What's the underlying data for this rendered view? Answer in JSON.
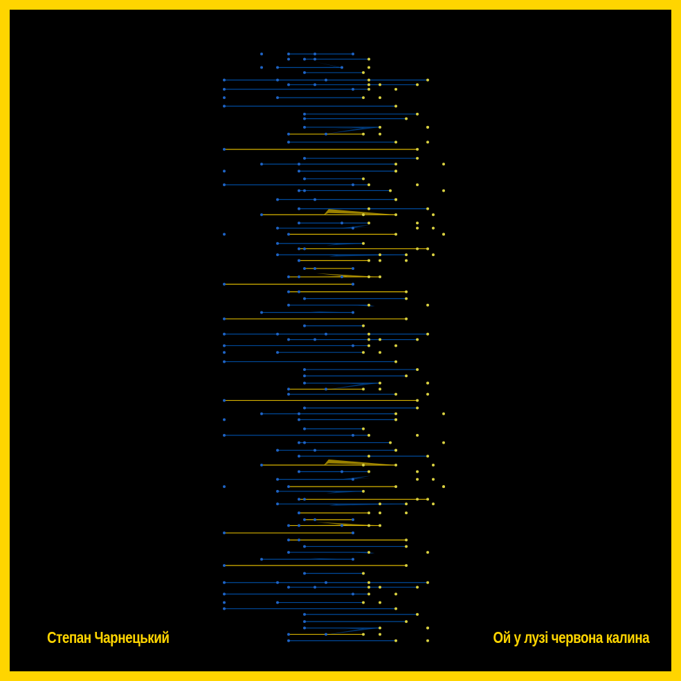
{
  "artwork": {
    "composer": "Степан Чарнецький",
    "song_title": "Ой у лузі червона калина"
  },
  "colors": {
    "frame": "#FFD500",
    "background": "#000000",
    "blue": "#0057B7",
    "yellow": "#FFD500",
    "node_blue": "#1E63C4",
    "node_yellow": "#D8D040"
  }
}
